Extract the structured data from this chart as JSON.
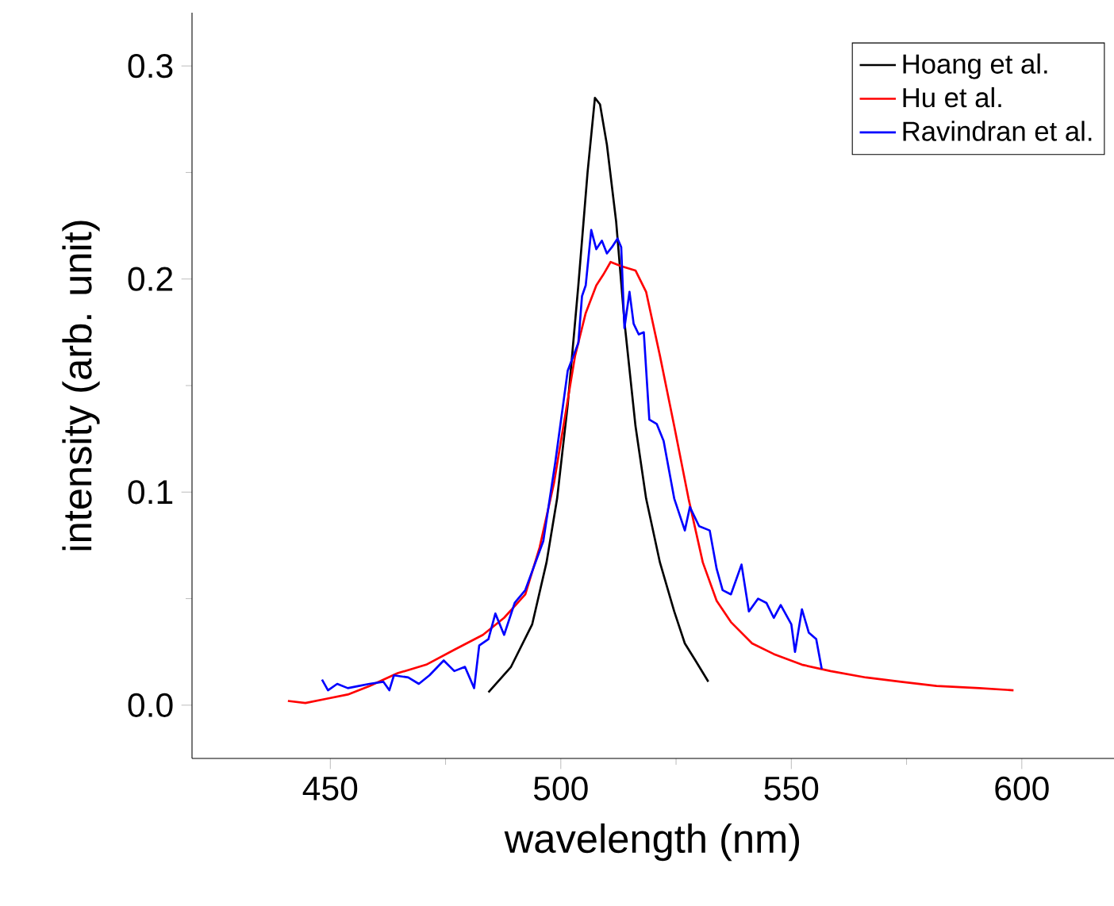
{
  "chart_data": {
    "type": "line",
    "xlabel": "wavelength (nm)",
    "ylabel": "intensity (arb. unit)",
    "xlim": [
      420,
      620
    ],
    "ylim": [
      -0.025,
      0.325
    ],
    "xticks": [
      450,
      500,
      550,
      600
    ],
    "yticks": [
      {
        "value": 0.0,
        "label": "0.0"
      },
      0.1,
      0.2,
      0.3
    ],
    "grid": false,
    "legend": "top right",
    "marker": "none",
    "line_style": "solid",
    "series": [
      {
        "name": "Hoang et al.",
        "color": "#000000",
        "x": [
          484.3,
          489.2,
          493.8,
          496.9,
          499.2,
          501.5,
          503.8,
          505.8,
          507.4,
          508.5,
          510,
          512,
          513.8,
          516.2,
          518.5,
          521.5,
          524.6,
          526.9,
          529.2,
          532
        ],
        "values": [
          0.006,
          0.018,
          0.038,
          0.067,
          0.097,
          0.141,
          0.197,
          0.25,
          0.285,
          0.282,
          0.263,
          0.227,
          0.18,
          0.131,
          0.097,
          0.067,
          0.044,
          0.029,
          0.021,
          0.011
        ]
      },
      {
        "name": "Hu et al.",
        "color": "#ff0000",
        "x": [
          440.8,
          444.6,
          449.2,
          453.8,
          458.5,
          464.6,
          470.8,
          476.9,
          483.1,
          487.7,
          492.3,
          495.4,
          498.5,
          500.8,
          503.1,
          505.4,
          507.7,
          509.2,
          510.8,
          513.1,
          516.2,
          518.5,
          521.5,
          524.6,
          527.7,
          530.8,
          533.8,
          536.9,
          541.5,
          546.2,
          552.3,
          558.5,
          566.2,
          573.8,
          581.5,
          590.8,
          598.2
        ],
        "values": [
          0.002,
          0.001,
          0.003,
          0.005,
          0.009,
          0.015,
          0.019,
          0.026,
          0.033,
          0.041,
          0.052,
          0.074,
          0.104,
          0.134,
          0.164,
          0.184,
          0.197,
          0.202,
          0.208,
          0.206,
          0.204,
          0.194,
          0.164,
          0.131,
          0.097,
          0.067,
          0.049,
          0.039,
          0.029,
          0.024,
          0.019,
          0.016,
          0.013,
          0.011,
          0.009,
          0.008,
          0.007
        ]
      },
      {
        "name": "Ravindran et al.",
        "color": "#0000ff",
        "x": [
          448.2,
          449.5,
          451.5,
          453.8,
          456.2,
          458.5,
          461.5,
          462.8,
          463.8,
          466.9,
          469.2,
          471.5,
          474.6,
          476.9,
          479.2,
          481.2,
          482.3,
          484.3,
          485.8,
          487.7,
          490,
          492.3,
          496.2,
          498.8,
          501.5,
          503.8,
          504.6,
          505.4,
          506.6,
          507.7,
          508.9,
          510,
          511.1,
          512.3,
          513.1,
          513.8,
          514.9,
          515.8,
          516.9,
          518,
          519.2,
          520.8,
          522.3,
          524.6,
          526.9,
          528,
          530,
          532.3,
          533.8,
          535.1,
          536.9,
          539.2,
          540.8,
          542.8,
          544.6,
          546.2,
          547.7,
          550,
          550.8,
          552.3,
          553.8,
          555.4,
          556.6
        ],
        "values": [
          0.012,
          0.007,
          0.01,
          0.008,
          0.009,
          0.01,
          0.011,
          0.007,
          0.014,
          0.013,
          0.01,
          0.014,
          0.021,
          0.016,
          0.018,
          0.008,
          0.028,
          0.031,
          0.043,
          0.033,
          0.048,
          0.054,
          0.077,
          0.114,
          0.157,
          0.17,
          0.192,
          0.197,
          0.223,
          0.214,
          0.218,
          0.212,
          0.215,
          0.219,
          0.215,
          0.177,
          0.194,
          0.179,
          0.174,
          0.175,
          0.134,
          0.132,
          0.124,
          0.097,
          0.082,
          0.093,
          0.084,
          0.082,
          0.064,
          0.054,
          0.052,
          0.066,
          0.044,
          0.05,
          0.048,
          0.041,
          0.047,
          0.038,
          0.025,
          0.045,
          0.034,
          0.031,
          0.017
        ]
      }
    ]
  }
}
